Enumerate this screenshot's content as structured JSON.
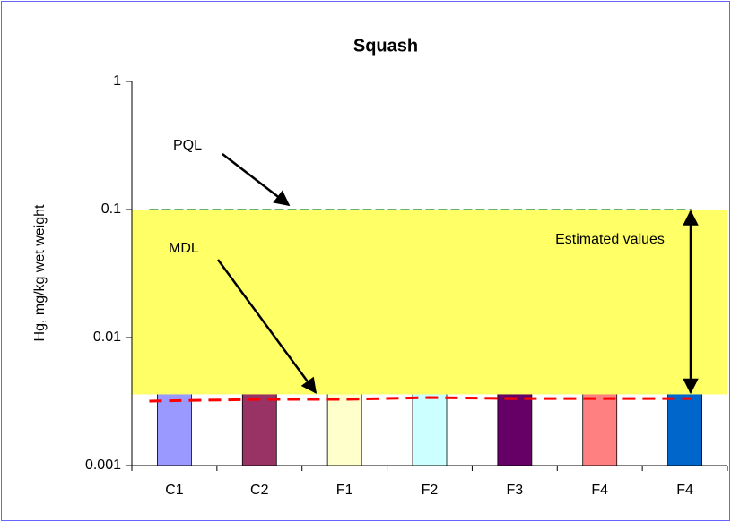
{
  "chart_data": {
    "type": "bar",
    "title": "Squash",
    "y_label": "Hg, mg/kg wet weight",
    "categories": [
      "C1",
      "C2",
      "F1",
      "F2",
      "F3",
      "F4",
      "F4"
    ],
    "values": [
      0.004,
      0.004,
      0.004,
      0.004,
      0.004,
      0.004,
      0.004
    ],
    "colors": [
      "#9999ff",
      "#993366",
      "#ffffcc",
      "#ccffff",
      "#660066",
      "#ff8080",
      "#0066cc"
    ],
    "series": [
      {
        "name": "PQL",
        "color": "#339933",
        "values": [
          0.1,
          0.1,
          0.1,
          0.1,
          0.1,
          0.1,
          0.1
        ]
      },
      {
        "name": "MDL",
        "color": "#ff0000",
        "values": [
          0.00319,
          0.00329,
          0.00329,
          0.0034,
          0.00334,
          0.00334,
          0.00334
        ]
      }
    ],
    "band": [
      0.0036,
      0.1
    ],
    "band_color": "#ffff66",
    "annotations": [
      "Estimated values"
    ],
    "log_scale": true,
    "ylim": [
      0.001,
      1
    ],
    "yticks": [
      0.001,
      0.01,
      0.1,
      1
    ]
  }
}
